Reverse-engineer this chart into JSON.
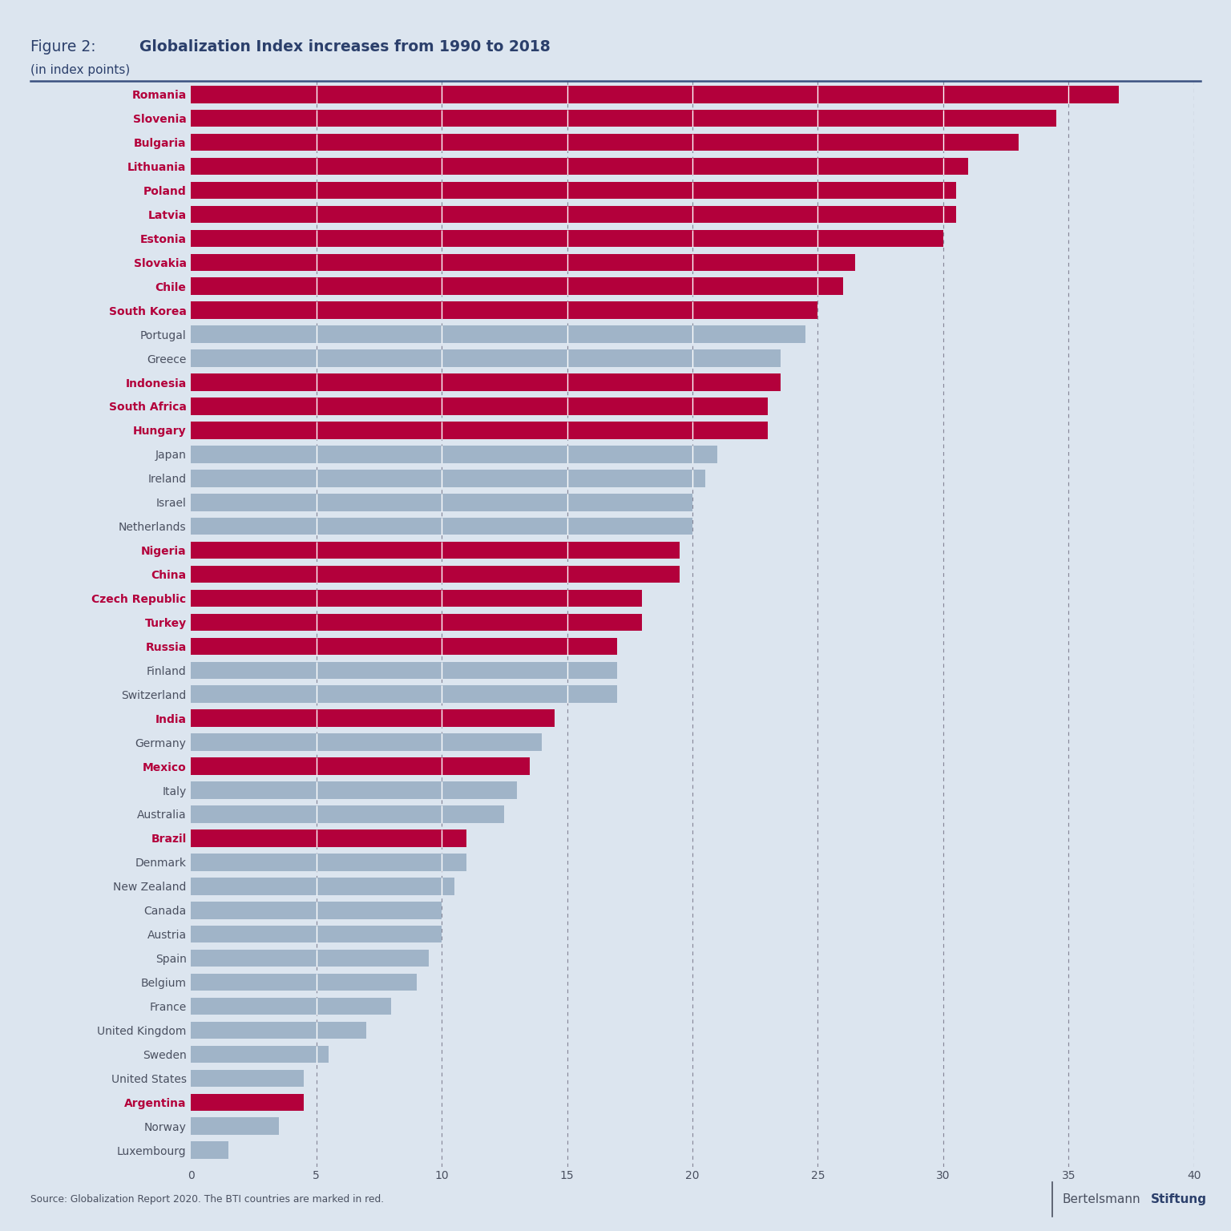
{
  "title_prefix": "Figure 2:  ",
  "title_bold": "Globalization Index increases from 1990 to 2018",
  "subtitle": "(in index points)",
  "source": "Source: Globalization Report 2020. The BTI countries are marked in red.",
  "brand_normal": "Bertelsmann",
  "brand_bold": "Stiftung",
  "background_color": "#dce5ef",
  "bar_color_red": "#b3003b",
  "bar_color_blue": "#a0b4c8",
  "dashed_line_color": "#888899",
  "title_color": "#2b3f6b",
  "label_color_normal": "#4a5060",
  "countries": [
    "Romania",
    "Slovenia",
    "Bulgaria",
    "Lithuania",
    "Poland",
    "Latvia",
    "Estonia",
    "Slovakia",
    "Chile",
    "South Korea",
    "Portugal",
    "Greece",
    "Indonesia",
    "South Africa",
    "Hungary",
    "Japan",
    "Ireland",
    "Israel",
    "Netherlands",
    "Nigeria",
    "China",
    "Czech Republic",
    "Turkey",
    "Russia",
    "Finland",
    "Switzerland",
    "India",
    "Germany",
    "Mexico",
    "Italy",
    "Australia",
    "Brazil",
    "Denmark",
    "New Zealand",
    "Canada",
    "Austria",
    "Spain",
    "Belgium",
    "France",
    "United Kingdom",
    "Sweden",
    "United States",
    "Argentina",
    "Norway",
    "Luxembourg"
  ],
  "values": [
    37.0,
    34.5,
    33.0,
    31.0,
    30.5,
    30.5,
    30.0,
    26.5,
    26.0,
    25.0,
    24.5,
    23.5,
    23.5,
    23.0,
    23.0,
    21.0,
    20.5,
    20.0,
    20.0,
    19.5,
    19.5,
    18.0,
    18.0,
    17.0,
    17.0,
    17.0,
    14.5,
    14.0,
    13.5,
    13.0,
    12.5,
    11.0,
    11.0,
    10.5,
    10.0,
    10.0,
    9.5,
    9.0,
    8.0,
    7.0,
    5.5,
    4.5,
    4.5,
    3.5,
    1.5
  ],
  "is_red": [
    true,
    true,
    true,
    true,
    true,
    true,
    true,
    true,
    true,
    true,
    false,
    false,
    true,
    true,
    true,
    false,
    false,
    false,
    false,
    true,
    true,
    true,
    true,
    true,
    false,
    false,
    true,
    false,
    true,
    false,
    false,
    true,
    false,
    false,
    false,
    false,
    false,
    false,
    false,
    false,
    false,
    false,
    true,
    false,
    false
  ],
  "xlim": [
    0,
    40
  ],
  "xticks": [
    0,
    5,
    10,
    15,
    20,
    25,
    30,
    35,
    40
  ],
  "dashed_lines": [
    5,
    10,
    15,
    20,
    25,
    30,
    35,
    40
  ]
}
